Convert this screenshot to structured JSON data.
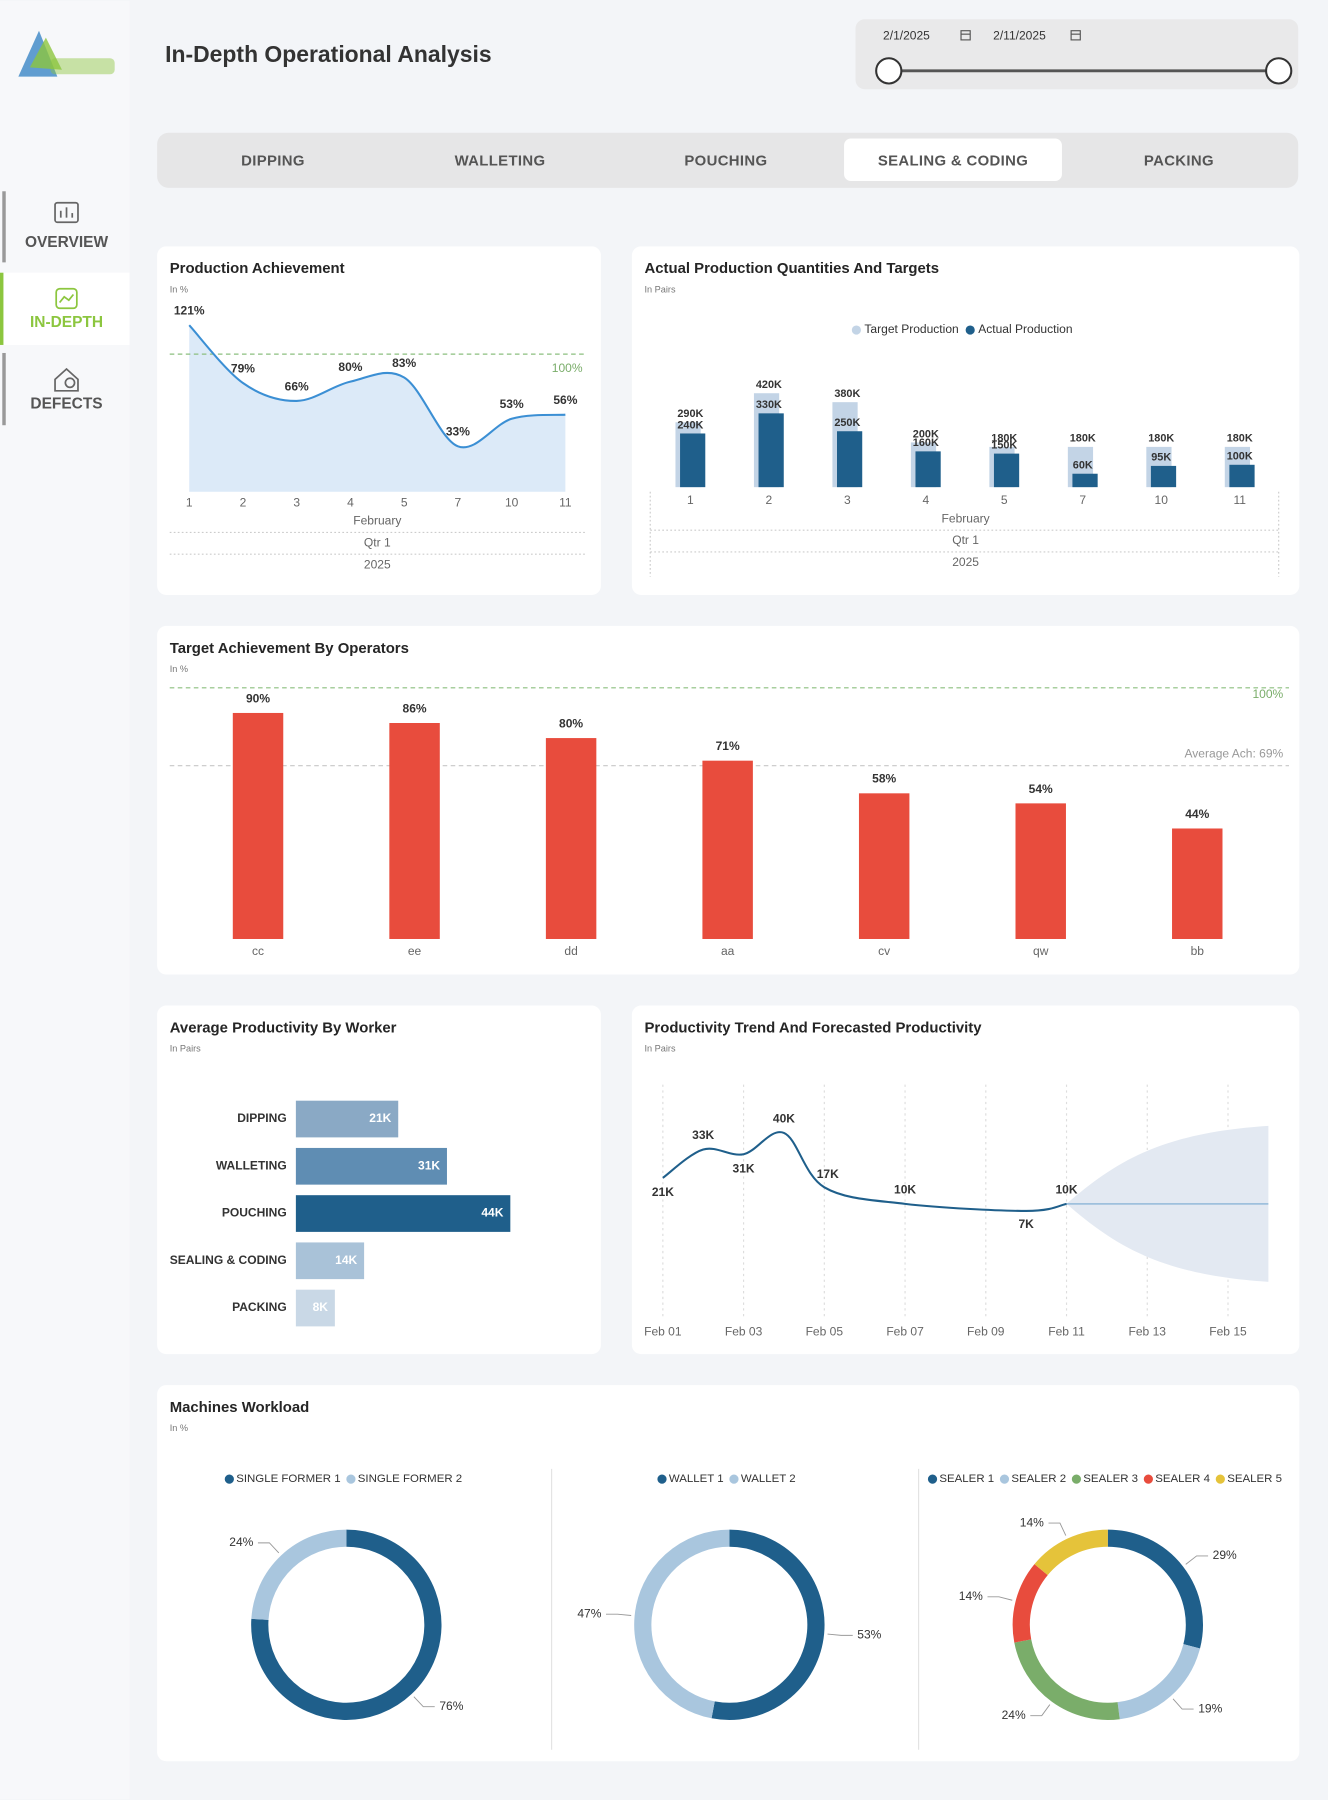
{
  "header": {
    "title": "In-Depth Operational Analysis",
    "date_start": "2/1/2025",
    "date_end": "2/11/2025"
  },
  "nav": {
    "items": [
      "OVERVIEW",
      "IN-DEPTH",
      "DEFECTS"
    ],
    "active": 1
  },
  "tabs": {
    "items": [
      "DIPPING",
      "WALLETING",
      "POUCHING",
      "SEALING & CODING",
      "PACKING"
    ],
    "active": 3
  },
  "chart_data": [
    {
      "type": "area",
      "title": "Production Achievement",
      "subtitle": "In %",
      "categories": [
        "1",
        "2",
        "3",
        "4",
        "5",
        "7",
        "10",
        "11"
      ],
      "values": [
        121,
        79,
        66,
        80,
        83,
        33,
        53,
        56
      ],
      "value_labels": [
        "121%",
        "79%",
        "66%",
        "80%",
        "83%",
        "33%",
        "53%",
        "56%"
      ],
      "color": "#3b8fd4",
      "ylim": [
        0,
        130
      ],
      "reference_line": {
        "value": 100,
        "label": "100%"
      },
      "x_hierarchy": [
        "February",
        "Qtr 1",
        "2025"
      ]
    },
    {
      "type": "bar",
      "title": "Actual Production Quantities And Targets",
      "subtitle": "In Pairs",
      "categories": [
        "1",
        "2",
        "3",
        "4",
        "5",
        "7",
        "10",
        "11"
      ],
      "series": [
        {
          "name": "Target Production",
          "color": "#c3d4e6",
          "values": [
            290000,
            420000,
            380000,
            200000,
            180000,
            180000,
            180000,
            180000
          ],
          "value_labels": [
            "290K",
            "420K",
            "380K",
            "200K",
            "180K",
            "180K",
            "180K",
            "180K"
          ]
        },
        {
          "name": "Actual Production",
          "color": "#1f5f8b",
          "values": [
            240000,
            330000,
            250000,
            160000,
            150000,
            60000,
            95000,
            100000
          ],
          "value_labels": [
            "240K",
            "330K",
            "250K",
            "160K",
            "150K",
            "60K",
            "95K",
            "100K"
          ]
        }
      ],
      "ylim": [
        0,
        500000
      ],
      "legend": "top",
      "x_hierarchy": [
        "February",
        "Qtr 1",
        "2025"
      ]
    },
    {
      "type": "bar",
      "title": "Target Achievement By Operators",
      "subtitle": "In %",
      "categories": [
        "cc",
        "ee",
        "dd",
        "aa",
        "cv",
        "qw",
        "bb"
      ],
      "values": [
        90,
        86,
        80,
        71,
        58,
        54,
        44
      ],
      "value_labels": [
        "90%",
        "86%",
        "80%",
        "71%",
        "58%",
        "54%",
        "44%"
      ],
      "color": "#e84c3d",
      "ylim": [
        0,
        100
      ],
      "reference_lines": [
        {
          "value": 100,
          "label": "100%",
          "color": "#8bbf7f"
        },
        {
          "value": 69,
          "label": "Average Ach: 69%",
          "color": "#c8c8c8"
        }
      ]
    },
    {
      "type": "barh",
      "title": "Average Productivity By Worker",
      "subtitle": "In Pairs",
      "categories": [
        "DIPPING",
        "WALLETING",
        "POUCHING",
        "SEALING & CODING",
        "PACKING"
      ],
      "values": [
        21000,
        31000,
        44000,
        14000,
        8000
      ],
      "value_labels": [
        "21K",
        "31K",
        "44K",
        "14K",
        "8K"
      ],
      "colors": [
        "#8aa9c5",
        "#5f8db3",
        "#1f5f8b",
        "#a9c2d8",
        "#c9d8e6"
      ],
      "xlim": [
        0,
        50000
      ]
    },
    {
      "type": "line",
      "title": "Productivity Trend And Forecasted Productivity",
      "subtitle": "In Pairs",
      "x": [
        "Feb 01",
        "Feb 02",
        "Feb 03",
        "Feb 04",
        "Feb 05",
        "Feb 07",
        "Feb 10",
        "Feb 11"
      ],
      "values": [
        21000,
        33000,
        31000,
        40000,
        17000,
        10000,
        7000,
        10000
      ],
      "value_labels": [
        "21K",
        "33K",
        "31K",
        "40K",
        "17K",
        "10K",
        "7K",
        "10K"
      ],
      "color": "#1f5f8b",
      "ylim": [
        -40000,
        60000
      ],
      "xlim": [
        "Feb 01",
        "Feb 16"
      ],
      "xticks": [
        "Feb 01",
        "Feb 03",
        "Feb 05",
        "Feb 07",
        "Feb 09",
        "Feb 11",
        "Feb 13",
        "Feb 15"
      ],
      "grid": true,
      "forecast": {
        "x": [
          "Feb 11",
          "Feb 16"
        ],
        "values": [
          10000,
          10000
        ],
        "upper": [
          10000,
          43000
        ],
        "lower": [
          10000,
          -23000
        ],
        "color": "#9ec0dd"
      }
    },
    {
      "type": "donut",
      "title": "Machines Workload",
      "subtitle": "In %",
      "pies": [
        {
          "categories": [
            "SINGLE FORMER 1",
            "SINGLE FORMER 2"
          ],
          "values": [
            76,
            24
          ],
          "value_labels": [
            "76%",
            "24%"
          ],
          "colors": [
            "#1f5f8b",
            "#a9c6de"
          ]
        },
        {
          "categories": [
            "WALLET 1",
            "WALLET 2"
          ],
          "values": [
            53,
            47
          ],
          "value_labels": [
            "53%",
            "47%"
          ],
          "colors": [
            "#1f5f8b",
            "#a9c6de"
          ]
        },
        {
          "categories": [
            "SEALER 1",
            "SEALER 2",
            "SEALER 3",
            "SEALER 4",
            "SEALER 5"
          ],
          "values": [
            29,
            19,
            24,
            14,
            14
          ],
          "value_labels": [
            "29%",
            "19%",
            "24%",
            "14%",
            "14%"
          ],
          "colors": [
            "#1f5f8b",
            "#a9c6de",
            "#7aad6a",
            "#e84c3d",
            "#e5c33a"
          ]
        }
      ]
    }
  ]
}
